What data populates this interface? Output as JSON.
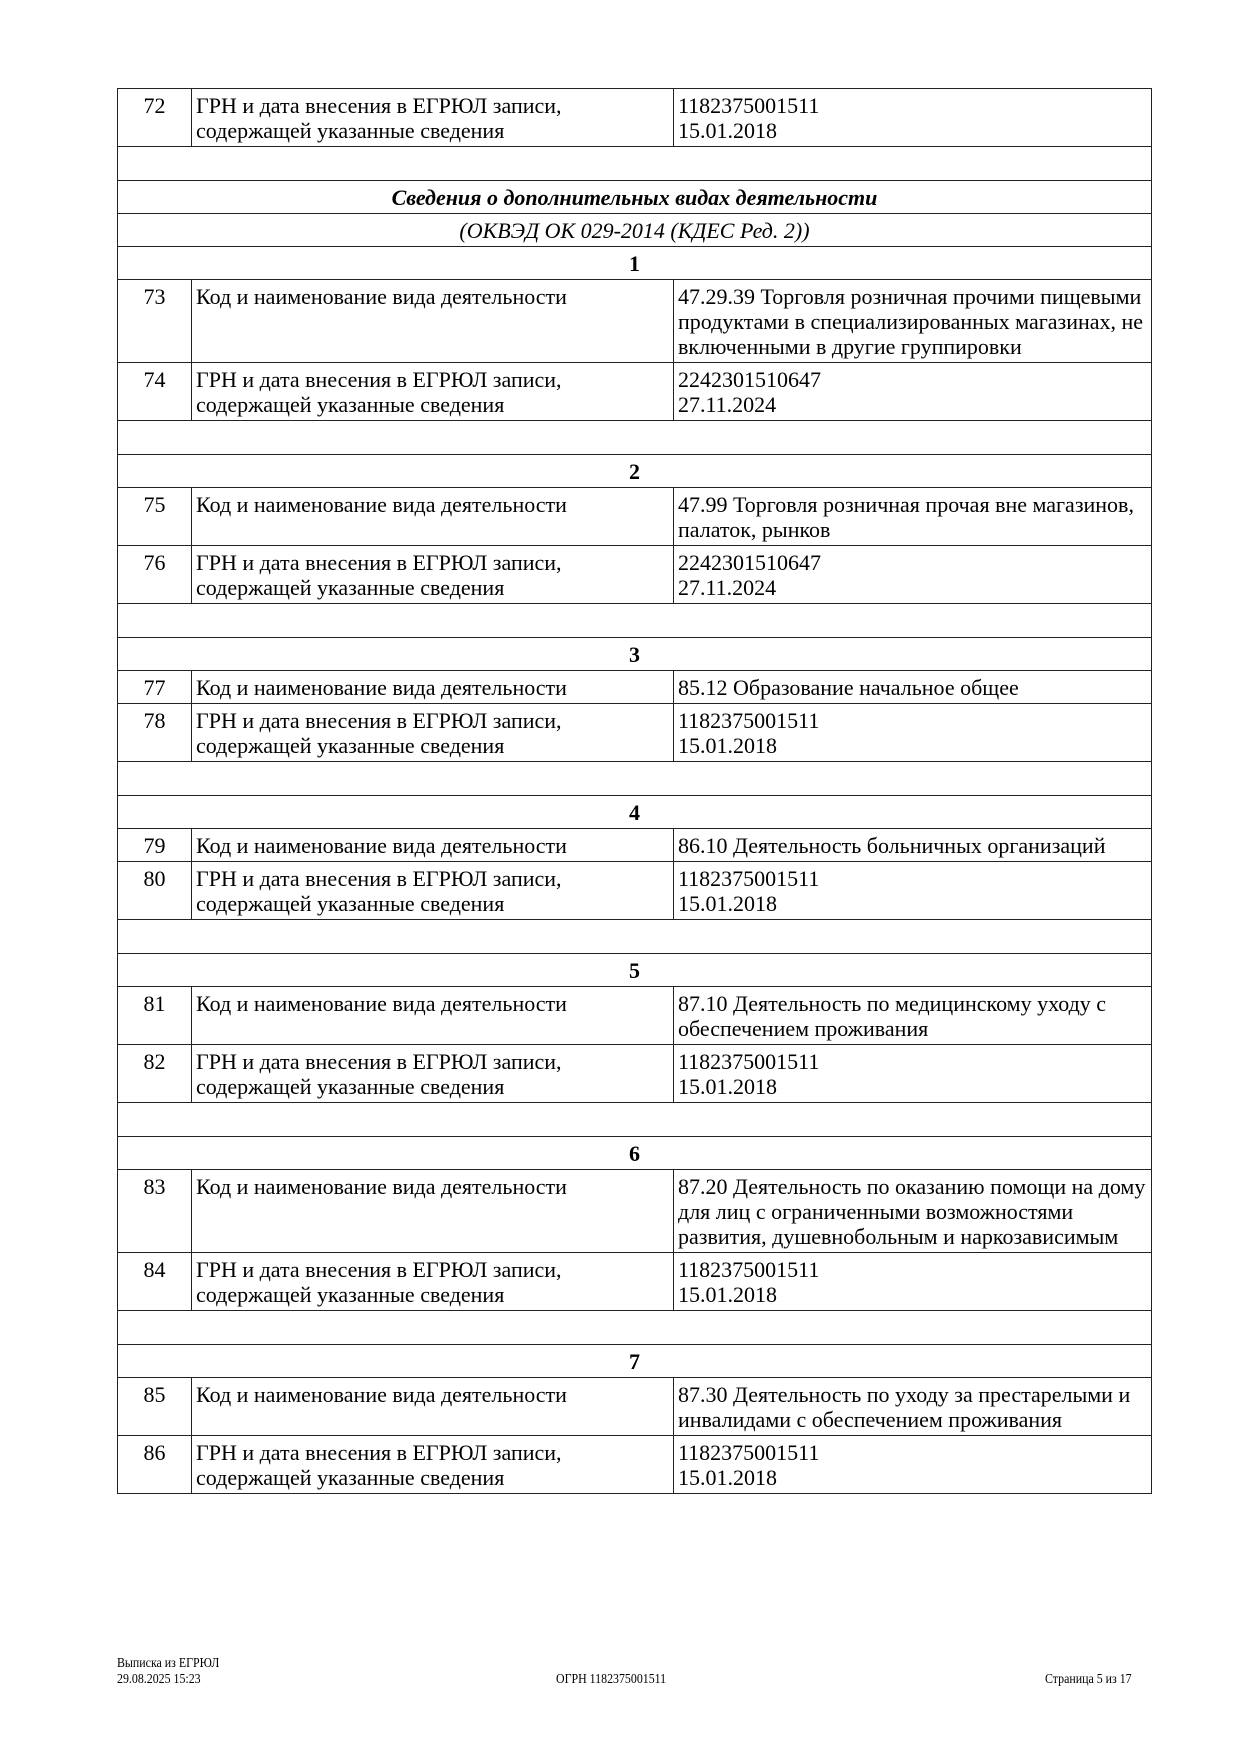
{
  "section_title": "Сведения о дополнительных видах деятельности",
  "section_subtitle": "(ОКВЭД ОК 029-2014 (КДЕС Ред. 2))",
  "top_row": {
    "num": "72",
    "label": "ГРН и дата внесения в ЕГРЮЛ записи, содержащей указанные сведения",
    "value": [
      "1182375001511",
      "15.01.2018"
    ]
  },
  "groups": [
    {
      "index": "1",
      "rows": [
        {
          "num": "73",
          "label": "Код и наименование вида деятельности",
          "value": [
            "47.29.39 Торговля розничная прочими пищевыми продуктами в специализированных магазинах, не включенными в другие группировки"
          ]
        },
        {
          "num": "74",
          "label": "ГРН и дата внесения в ЕГРЮЛ записи, содержащей указанные сведения",
          "value": [
            "2242301510647",
            "27.11.2024"
          ]
        }
      ]
    },
    {
      "index": "2",
      "rows": [
        {
          "num": "75",
          "label": "Код и наименование вида деятельности",
          "value": [
            "47.99 Торговля розничная прочая вне магазинов, палаток, рынков"
          ]
        },
        {
          "num": "76",
          "label": "ГРН и дата внесения в ЕГРЮЛ записи, содержащей указанные сведения",
          "value": [
            "2242301510647",
            "27.11.2024"
          ]
        }
      ]
    },
    {
      "index": "3",
      "rows": [
        {
          "num": "77",
          "label": "Код и наименование вида деятельности",
          "value": [
            "85.12 Образование начальное общее"
          ]
        },
        {
          "num": "78",
          "label": "ГРН и дата внесения в ЕГРЮЛ записи, содержащей указанные сведения",
          "value": [
            "1182375001511",
            "15.01.2018"
          ]
        }
      ]
    },
    {
      "index": "4",
      "rows": [
        {
          "num": "79",
          "label": "Код и наименование вида деятельности",
          "value": [
            "86.10 Деятельность больничных организаций"
          ]
        },
        {
          "num": "80",
          "label": "ГРН и дата внесения в ЕГРЮЛ записи, содержащей указанные сведения",
          "value": [
            "1182375001511",
            "15.01.2018"
          ]
        }
      ]
    },
    {
      "index": "5",
      "rows": [
        {
          "num": "81",
          "label": "Код и наименование вида деятельности",
          "value": [
            "87.10 Деятельность по медицинскому уходу с обеспечением проживания"
          ]
        },
        {
          "num": "82",
          "label": "ГРН и дата внесения в ЕГРЮЛ записи, содержащей указанные сведения",
          "value": [
            "1182375001511",
            "15.01.2018"
          ]
        }
      ]
    },
    {
      "index": "6",
      "rows": [
        {
          "num": "83",
          "label": "Код и наименование вида деятельности",
          "value": [
            "87.20 Деятельность по оказанию помощи на дому для лиц с ограниченными возможностями развития, душевнобольным и наркозависимым"
          ]
        },
        {
          "num": "84",
          "label": "ГРН и дата внесения в ЕГРЮЛ записи, содержащей указанные сведения",
          "value": [
            "1182375001511",
            "15.01.2018"
          ]
        }
      ]
    },
    {
      "index": "7",
      "rows": [
        {
          "num": "85",
          "label": "Код и наименование вида деятельности",
          "value": [
            "87.30 Деятельность по уходу за престарелыми и инвалидами с обеспечением проживания"
          ]
        },
        {
          "num": "86",
          "label": "ГРН и дата внесения в ЕГРЮЛ записи, содержащей указанные сведения",
          "value": [
            "1182375001511",
            "15.01.2018"
          ]
        }
      ]
    }
  ],
  "footer": {
    "doc_name": "Выписка из ЕГРЮЛ",
    "datetime": "29.08.2025 15:23",
    "ogrn": "ОГРН 1182375001511",
    "page": "Страница 5 из 17"
  }
}
